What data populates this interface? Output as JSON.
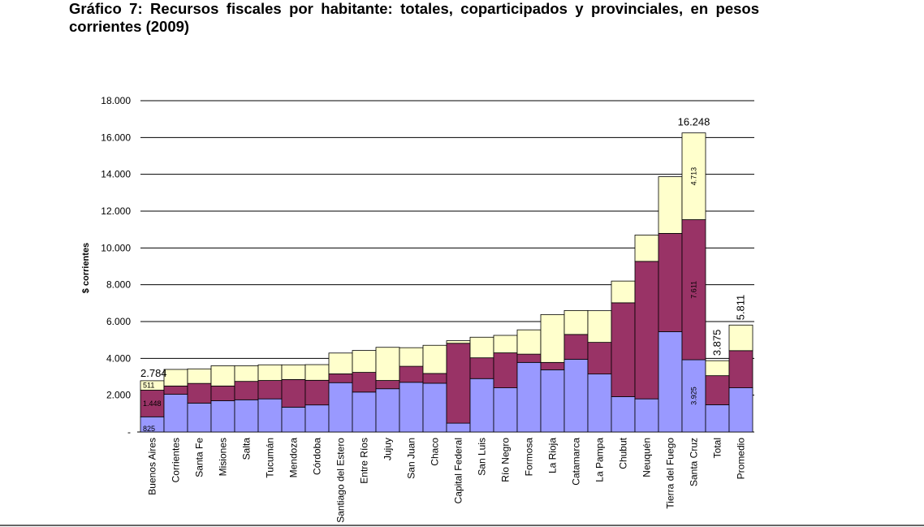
{
  "title": "Gráfico 7: Recursos fiscales por habitante: totales, coparticipados y provinciales, en pesos corrientes (2009)",
  "colors": {
    "bottom": "#9999ff",
    "middle": "#993366",
    "top": "#ffffcc",
    "outline": "#000000",
    "grid": "#000000"
  },
  "chart_data": {
    "type": "bar",
    "stacked": true,
    "ylabel": "$ corrientes",
    "ylim": [
      0,
      18000
    ],
    "yticks": [
      {
        "value": 0,
        "label": "-"
      },
      {
        "value": 2000,
        "label": "2.000"
      },
      {
        "value": 4000,
        "label": "4.000"
      },
      {
        "value": 6000,
        "label": "6.000"
      },
      {
        "value": 8000,
        "label": "8.000"
      },
      {
        "value": 10000,
        "label": "10.000"
      },
      {
        "value": 12000,
        "label": "12.000"
      },
      {
        "value": 14000,
        "label": "14.000"
      },
      {
        "value": 16000,
        "label": "16.000"
      },
      {
        "value": 18000,
        "label": "18.000"
      }
    ],
    "grid": true,
    "categories": [
      "Buenos Aires",
      "Corrientes",
      "Santa Fe",
      "Misiones",
      "Salta",
      "Tucumán",
      "Mendoza",
      "Córdoba",
      "Santiago del Estero",
      "Entre Ríos",
      "Jujuy",
      "San Juan",
      "Chaco",
      "Capital Federal",
      "San Luis",
      "Río Negro",
      "Formosa",
      "La Rioja",
      "Catamarca",
      "La Pampa",
      "Chubut",
      "Neuquén",
      "Tierra del Fuego",
      "Santa Cruz",
      "Total",
      "Promedio"
    ],
    "series": [
      {
        "values": [
          825,
          2050,
          1570,
          1700,
          1750,
          1800,
          1350,
          1470,
          2680,
          2170,
          2350,
          2700,
          2650,
          480,
          2900,
          2400,
          3780,
          3380,
          3950,
          3150,
          1920,
          1800,
          5450,
          3925,
          1480,
          2400
        ]
      },
      {
        "values": [
          1448,
          450,
          1070,
          800,
          1000,
          1000,
          1500,
          1340,
          480,
          1070,
          450,
          870,
          530,
          4340,
          1130,
          1900,
          450,
          400,
          1350,
          1720,
          5100,
          7470,
          5340,
          7611,
          1580,
          2020
        ]
      },
      {
        "values": [
          511,
          900,
          790,
          1100,
          850,
          850,
          800,
          850,
          1130,
          1190,
          1800,
          1010,
          1530,
          140,
          1120,
          950,
          1320,
          2600,
          1300,
          1720,
          1180,
          1430,
          3080,
          4713,
          815,
          1391
        ]
      }
    ],
    "totals": [
      2784,
      3400,
      3430,
      3600,
      3600,
      3650,
      3650,
      3660,
      4290,
      4430,
      4600,
      4580,
      4710,
      4960,
      5150,
      5250,
      5550,
      6380,
      6600,
      6590,
      8200,
      10700,
      13870,
      16248,
      3875,
      5811
    ],
    "segment_labels": [
      {
        "category": "Buenos Aires",
        "labels": [
          "825",
          "1.448",
          "511"
        ]
      },
      {
        "category": "Santa Cruz",
        "labels": [
          "3.925",
          "7.611",
          "4.713"
        ]
      }
    ],
    "total_labels": [
      {
        "category": "Buenos Aires",
        "label": "2.784"
      },
      {
        "category": "Santa Cruz",
        "label": "16.248"
      },
      {
        "category": "Total",
        "label": "3.875"
      },
      {
        "category": "Promedio",
        "label": "5.811"
      }
    ]
  }
}
